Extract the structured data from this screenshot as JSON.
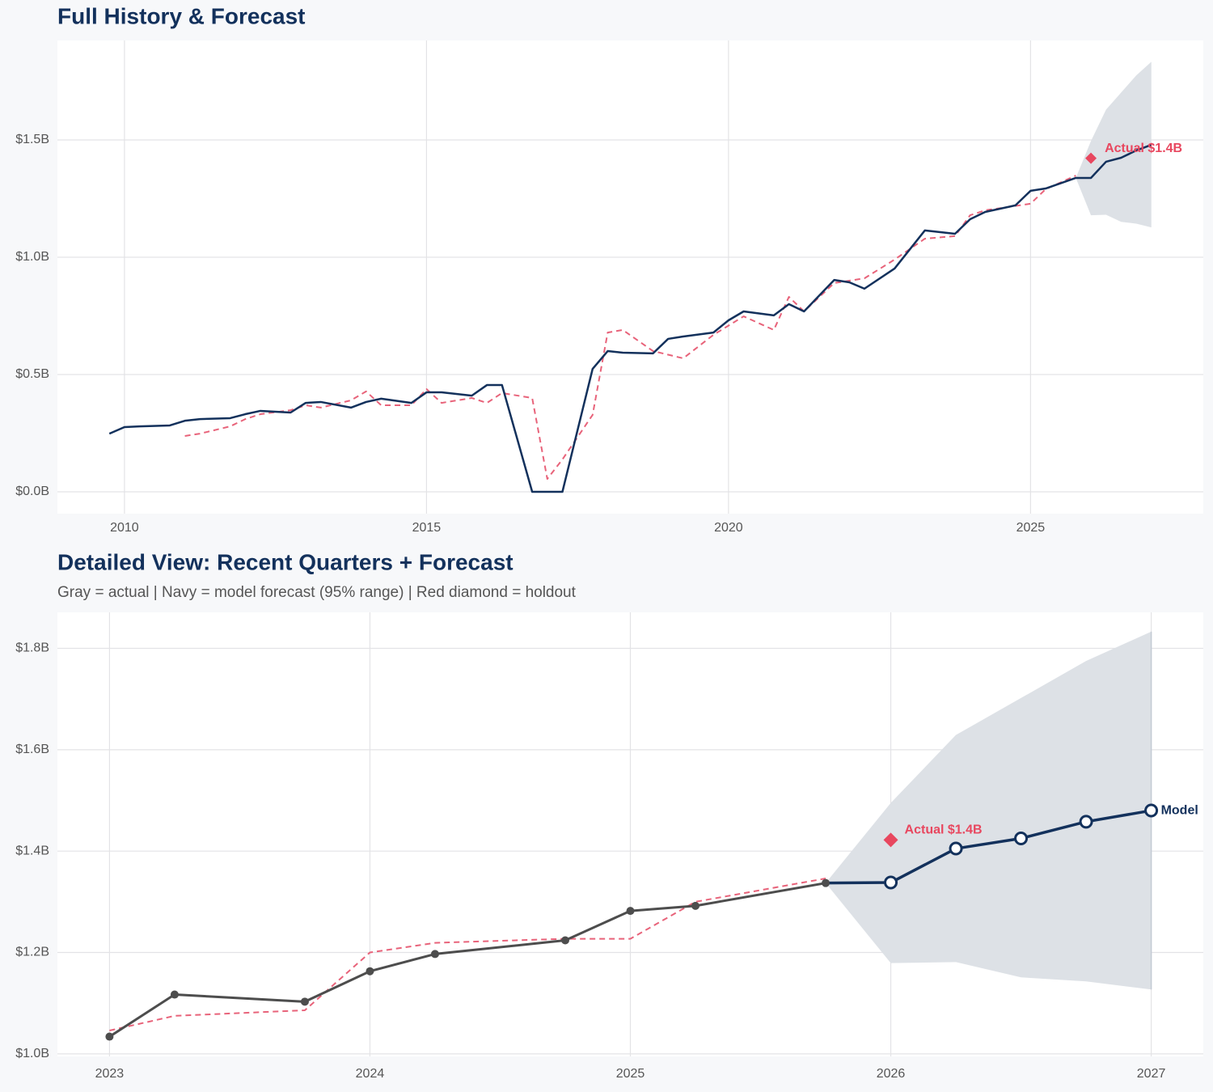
{
  "chart_data": [
    {
      "type": "line",
      "title": "Full History & Forecast",
      "xlim": [
        2008.89,
        2027.86
      ],
      "xticks": [
        2010,
        2015,
        2020,
        2025
      ],
      "ylim": [
        -0.093,
        1.924
      ],
      "yticks": [
        {
          "value": 0,
          "label": "$0.0B"
        },
        {
          "value": 0.5,
          "label": "$0.5B"
        },
        {
          "value": 1.0,
          "label": "$1.0B"
        },
        {
          "value": 1.5,
          "label": "$1.5B"
        }
      ],
      "grid": true,
      "series": [
        {
          "kind": "band",
          "color": "#dde1e6",
          "x": [
            2025.75,
            2026.0,
            2026.25,
            2026.5,
            2026.75,
            2027.0
          ],
          "lower": [
            1.338,
            1.179,
            1.181,
            1.151,
            1.143,
            1.127
          ],
          "upper": [
            1.338,
            1.495,
            1.629,
            1.702,
            1.775,
            1.833
          ]
        },
        {
          "kind": "line",
          "color": "#e8637a",
          "dash": true,
          "width": 2,
          "x": [
            2011.0,
            2011.25,
            2011.75,
            2012.0,
            2012.25,
            2012.75,
            2013.0,
            2013.25,
            2013.75,
            2014.0,
            2014.25,
            2014.75,
            2015.0,
            2015.25,
            2015.75,
            2016.0,
            2016.25,
            2016.75,
            2017.0,
            2017.25,
            2017.75,
            2018.0,
            2018.25,
            2018.75,
            2019.25,
            2019.75,
            2020.25,
            2020.75,
            2021.0,
            2021.25,
            2021.75,
            2022.25,
            2022.75,
            2023.25,
            2023.75,
            2024.0,
            2024.25,
            2025.0,
            2025.25,
            2025.75
          ],
          "values": [
            0.238,
            0.248,
            0.279,
            0.31,
            0.331,
            0.348,
            0.369,
            0.359,
            0.39,
            0.428,
            0.369,
            0.369,
            0.438,
            0.379,
            0.4,
            0.379,
            0.421,
            0.4,
            0.055,
            0.138,
            0.328,
            0.679,
            0.69,
            0.6,
            0.569,
            0.669,
            0.748,
            0.69,
            0.831,
            0.769,
            0.89,
            0.91,
            0.99,
            1.079,
            1.09,
            1.179,
            1.2,
            1.228,
            1.29,
            1.348
          ]
        },
        {
          "kind": "line",
          "color": "#13315c",
          "width": 2.5,
          "x": [
            2009.75,
            2010.0,
            2010.25,
            2010.75,
            2011.0,
            2011.25,
            2011.75,
            2012.0,
            2012.25,
            2012.75,
            2013.0,
            2013.25,
            2013.75,
            2014.0,
            2014.25,
            2014.75,
            2015.0,
            2015.25,
            2015.75,
            2016.0,
            2016.25,
            2016.75,
            2017.25,
            2017.75,
            2018.0,
            2018.25,
            2018.75,
            2019.0,
            2019.25,
            2019.75,
            2020.0,
            2020.25,
            2020.75,
            2021.0,
            2021.25,
            2021.75,
            2022.0,
            2022.25,
            2022.75,
            2023.25,
            2023.75,
            2024.0,
            2024.25,
            2024.75,
            2025.0,
            2025.25,
            2025.75,
            2026.0,
            2026.25,
            2026.5,
            2026.75,
            2027.0
          ],
          "values": [
            0.248,
            0.276,
            0.279,
            0.283,
            0.303,
            0.31,
            0.314,
            0.331,
            0.345,
            0.338,
            0.379,
            0.383,
            0.359,
            0.383,
            0.397,
            0.379,
            0.424,
            0.424,
            0.41,
            0.455,
            0.455,
            0.0,
            0.0,
            0.524,
            0.6,
            0.593,
            0.59,
            0.652,
            0.662,
            0.679,
            0.731,
            0.769,
            0.752,
            0.8,
            0.769,
            0.903,
            0.893,
            0.866,
            0.952,
            1.114,
            1.1,
            1.162,
            1.193,
            1.221,
            1.283,
            1.293,
            1.338,
            1.338,
            1.407,
            1.424,
            1.455,
            1.479
          ]
        },
        {
          "kind": "diamond",
          "color": "#e8475f",
          "x": [
            2026.0
          ],
          "values": [
            1.422
          ],
          "label": "Actual $1.4B"
        }
      ]
    },
    {
      "type": "line",
      "title": "Detailed View: Recent Quarters + Forecast",
      "subtitle": "Gray = actual  |  Navy = model forecast (95% range)  |  Red diamond = holdout",
      "xlim": [
        2022.8,
        2027.2
      ],
      "xticks": [
        2023,
        2024,
        2025,
        2026,
        2027
      ],
      "ylim": [
        0.995,
        1.871
      ],
      "yticks": [
        {
          "value": 1.0,
          "label": "$1.0B"
        },
        {
          "value": 1.2,
          "label": "$1.2B"
        },
        {
          "value": 1.4,
          "label": "$1.4B"
        },
        {
          "value": 1.6,
          "label": "$1.6B"
        },
        {
          "value": 1.8,
          "label": "$1.8B"
        }
      ],
      "grid": true,
      "series": [
        {
          "kind": "band",
          "color": "#dde1e6",
          "x": [
            2025.75,
            2026.0,
            2026.25,
            2026.5,
            2026.75,
            2027.0
          ],
          "lower": [
            1.337,
            1.179,
            1.181,
            1.151,
            1.143,
            1.127
          ],
          "upper": [
            1.337,
            1.495,
            1.629,
            1.702,
            1.775,
            1.833
          ]
        },
        {
          "kind": "line",
          "color": "#e8637a",
          "dash": true,
          "width": 2,
          "x": [
            2023.0,
            2023.25,
            2023.75,
            2024.0,
            2024.25,
            2024.75,
            2025.0,
            2025.25,
            2025.75
          ],
          "values": [
            1.046,
            1.075,
            1.086,
            1.2,
            1.219,
            1.227,
            1.227,
            1.3,
            1.346
          ]
        },
        {
          "kind": "line",
          "color": "#13315c",
          "width": 3.5,
          "x": [
            2025.75,
            2026.0,
            2026.25,
            2026.5,
            2026.75,
            2027.0
          ],
          "values": [
            1.337,
            1.338,
            1.405,
            1.425,
            1.458,
            1.48
          ],
          "markers": [
            null,
            "open",
            "open",
            "open",
            "open",
            "open"
          ],
          "label": "Model"
        },
        {
          "kind": "line",
          "color": "#4d4d4d",
          "width": 3,
          "x": [
            2023.0,
            2023.25,
            2023.75,
            2024.0,
            2024.25,
            2024.75,
            2025.0,
            2025.25,
            2025.75
          ],
          "values": [
            1.034,
            1.117,
            1.103,
            1.163,
            1.197,
            1.224,
            1.282,
            1.292,
            1.337
          ],
          "markers": [
            "filled",
            "filled",
            "filled",
            "filled",
            "filled",
            "filled",
            "filled",
            "filled",
            "filled"
          ]
        },
        {
          "kind": "diamond",
          "color": "#e8475f",
          "x": [
            2026.0
          ],
          "values": [
            1.422
          ],
          "label": "Actual $1.4B"
        }
      ]
    }
  ]
}
